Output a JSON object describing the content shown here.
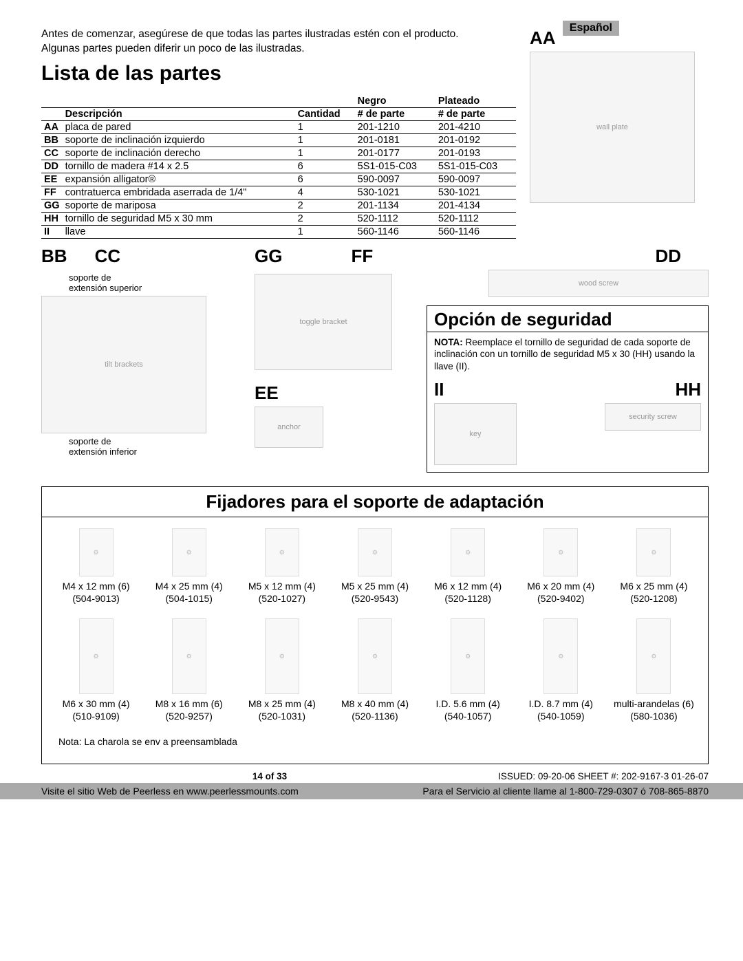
{
  "language_badge": "Español",
  "intro_line1": "Antes de comenzar, asegúrese de que todas las partes ilustradas estén con el producto.",
  "intro_line2": "Algunas partes pueden diferir un poco de las ilustradas.",
  "title": "Lista de las partes",
  "table": {
    "headers": {
      "desc": "Descripción",
      "qty": "Cantidad",
      "black": "Negro",
      "silver": "Plateado",
      "partno": "# de parte"
    },
    "rows": [
      {
        "code": "AA",
        "desc": "placa de pared",
        "qty": "1",
        "black": "201-1210",
        "silver": "201-4210"
      },
      {
        "code": "BB",
        "desc": "soporte de inclinación izquierdo",
        "qty": "1",
        "black": "201-0181",
        "silver": "201-0192"
      },
      {
        "code": "CC",
        "desc": "soporte de inclinación derecho",
        "qty": "1",
        "black": "201-0177",
        "silver": "201-0193"
      },
      {
        "code": "DD",
        "desc": "tornillo de madera #14 x 2.5",
        "qty": "6",
        "black": "5S1-015-C03",
        "silver": "5S1-015-C03"
      },
      {
        "code": "EE",
        "desc": "expansión alligator®",
        "qty": "6",
        "black": "590-0097",
        "silver": "590-0097"
      },
      {
        "code": "FF",
        "desc": "contratuerca embridada aserrada de 1/4\"",
        "qty": "4",
        "black": "530-1021",
        "silver": "530-1021"
      },
      {
        "code": "GG",
        "desc": "soporte de mariposa",
        "qty": "2",
        "black": "201-1134",
        "silver": "201-4134"
      },
      {
        "code": "HH",
        "desc": "tornillo de seguridad M5 x 30 mm",
        "qty": "2",
        "black": "520-1112",
        "silver": "520-1112"
      },
      {
        "code": "II",
        "desc": "llave",
        "qty": "1",
        "black": "560-1146",
        "silver": "560-1146"
      }
    ]
  },
  "labels": {
    "AA": "AA",
    "BB": "BB",
    "CC": "CC",
    "DD": "DD",
    "EE": "EE",
    "FF": "FF",
    "GG": "GG",
    "HH": "HH",
    "II": "II",
    "ext_sup": "soporte de\nextensión superior",
    "ext_inf": "soporte de\nextensión inferior"
  },
  "security": {
    "title": "Opción de seguridad",
    "note_label": "NOTA:",
    "note_text": "Reemplace el tornillo de seguridad de cada soporte de inclinación con un tornillo de seguridad M5 x 30 (HH) usando la llave (II)."
  },
  "fasteners": {
    "title": "Fijadores para el soporte de adaptación",
    "row1": [
      {
        "name": "M4 x 12 mm (6)",
        "pn": "(504-9013)"
      },
      {
        "name": "M4 x 25 mm (4)",
        "pn": "(504-1015)"
      },
      {
        "name": "M5 x 12 mm (4)",
        "pn": "(520-1027)"
      },
      {
        "name": "M5 x 25 mm (4)",
        "pn": "(520-9543)"
      },
      {
        "name": "M6 x 12 mm (4)",
        "pn": "(520-1128)"
      },
      {
        "name": "M6 x 20 mm (4)",
        "pn": "(520-9402)"
      },
      {
        "name": "M6 x 25 mm (4)",
        "pn": "(520-1208)"
      }
    ],
    "row2": [
      {
        "name": "M6 x 30 mm (4)",
        "pn": "(510-9109)"
      },
      {
        "name": "M8 x 16 mm (6)",
        "pn": "(520-9257)"
      },
      {
        "name": "M8 x 25 mm (4)",
        "pn": "(520-1031)"
      },
      {
        "name": "M8 x 40 mm (4)",
        "pn": "(520-1136)"
      },
      {
        "name": "I.D. 5.6 mm (4)",
        "pn": "(540-1057)"
      },
      {
        "name": "I.D. 8.7 mm (4)",
        "pn": "(540-1059)"
      },
      {
        "name": "multi-arandelas (6)",
        "pn": "(580-1036)"
      }
    ],
    "footnote": "Nota: La charola se env a preensamblada"
  },
  "footer": {
    "page": "14 of 33",
    "issued": "ISSUED: 09-20-06  SHEET #: 202-9167-3 01-26-07",
    "web": "Visite el sitio Web de Peerless en www.peerlessmounts.com",
    "service": "Para el Servicio al cliente llame al 1-800-729-0307 ó 708-865-8870"
  }
}
